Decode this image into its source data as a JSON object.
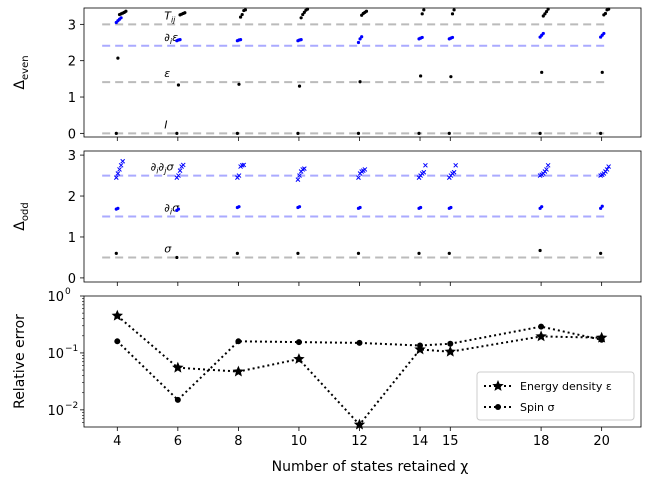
{
  "chart_data": [
    {
      "type": "scatter",
      "panel": "even",
      "ylabel": "Δ",
      "ylabel_sub": "even",
      "ylim": [
        -0.1,
        3.45
      ],
      "yticks": [
        "0",
        "1",
        "2",
        "3"
      ],
      "ytick_values": [
        0,
        1,
        2,
        3
      ],
      "reference_lines": [
        {
          "label": "T",
          "label_sub": "ij",
          "value": 3.0,
          "color": "#bbbbbb"
        },
        {
          "label": "∂",
          "label_sub": "i",
          "label_tail": "ε",
          "value": 2.41,
          "color": "#aaaaff"
        },
        {
          "label": "ε",
          "value": 1.41,
          "color": "#bbbbbb"
        },
        {
          "label": "I",
          "value": 0.0,
          "color": "#bbbbbb"
        }
      ],
      "series": [
        {
          "color": "#000000",
          "points": [
            [
              4,
              0
            ],
            [
              4,
              2.07
            ],
            [
              4,
              3.27
            ],
            [
              4,
              3.29
            ],
            [
              4,
              3.31
            ],
            [
              4,
              3.33
            ],
            [
              4,
              3.36
            ],
            [
              6,
              0
            ],
            [
              6,
              1.33
            ],
            [
              6,
              3.26
            ],
            [
              6,
              3.28
            ],
            [
              6,
              3.3
            ],
            [
              6,
              3.32
            ],
            [
              8,
              0
            ],
            [
              8,
              1.35
            ],
            [
              8,
              3.2
            ],
            [
              8,
              3.27
            ],
            [
              8,
              3.38
            ],
            [
              8,
              3.4
            ],
            [
              10,
              0
            ],
            [
              10,
              1.3
            ],
            [
              10,
              3.18
            ],
            [
              10,
              3.27
            ],
            [
              10,
              3.33
            ],
            [
              10,
              3.39
            ],
            [
              10,
              3.42
            ],
            [
              12,
              0
            ],
            [
              12,
              1.42
            ],
            [
              12,
              3.25
            ],
            [
              12,
              3.3
            ],
            [
              12,
              3.33
            ],
            [
              12,
              3.36
            ],
            [
              14,
              0
            ],
            [
              14,
              1.58
            ],
            [
              14,
              3.29
            ],
            [
              14,
              3.4
            ],
            [
              15,
              0
            ],
            [
              15,
              1.56
            ],
            [
              15,
              3.29
            ],
            [
              15,
              3.4
            ],
            [
              18,
              0
            ],
            [
              18,
              1.68
            ],
            [
              18,
              3.23
            ],
            [
              18,
              3.29
            ],
            [
              18,
              3.35
            ],
            [
              18,
              3.42
            ],
            [
              20,
              0
            ],
            [
              20,
              1.68
            ],
            [
              20,
              3.26
            ],
            [
              20,
              3.3
            ],
            [
              20,
              3.4
            ],
            [
              20,
              3.42
            ]
          ]
        },
        {
          "color": "#0000ff",
          "points": [
            [
              4,
              3.05
            ],
            [
              4,
              3.1
            ],
            [
              4,
              3.14
            ],
            [
              4,
              3.18
            ],
            [
              6,
              2.55
            ],
            [
              6,
              2.57
            ],
            [
              6,
              2.58
            ],
            [
              8,
              2.55
            ],
            [
              8,
              2.57
            ],
            [
              8,
              2.58
            ],
            [
              10,
              2.55
            ],
            [
              10,
              2.57
            ],
            [
              10,
              2.58
            ],
            [
              12,
              2.5
            ],
            [
              12,
              2.6
            ],
            [
              12,
              2.66
            ],
            [
              14,
              2.6
            ],
            [
              14,
              2.62
            ],
            [
              14,
              2.64
            ],
            [
              15,
              2.6
            ],
            [
              15,
              2.62
            ],
            [
              15,
              2.64
            ],
            [
              18,
              2.65
            ],
            [
              18,
              2.7
            ],
            [
              18,
              2.75
            ],
            [
              20,
              2.65
            ],
            [
              20,
              2.7
            ],
            [
              20,
              2.75
            ]
          ]
        }
      ]
    },
    {
      "type": "scatter",
      "panel": "odd",
      "ylabel": "Δ",
      "ylabel_sub": "odd",
      "ylim": [
        -0.1,
        3.1
      ],
      "yticks": [
        "0",
        "1",
        "2",
        "3"
      ],
      "ytick_values": [
        0,
        1,
        2,
        3
      ],
      "reference_lines": [
        {
          "label": "∂",
          "label_sub": "i",
          "label_tail": "∂",
          "label_sub2": "j",
          "label_tail2": "σ",
          "value": 2.5,
          "color": "#aaaaff"
        },
        {
          "label": "∂",
          "label_sub": "i",
          "label_tail": "σ",
          "value": 1.5,
          "color": "#aaaaff"
        },
        {
          "label": "σ",
          "value": 0.5,
          "color": "#bbbbbb"
        }
      ],
      "series": [
        {
          "color": "#000000",
          "points": [
            [
              4,
              0.6
            ],
            [
              6,
              0.5
            ],
            [
              8,
              0.6
            ],
            [
              10,
              0.6
            ],
            [
              12,
              0.6
            ],
            [
              14,
              0.6
            ],
            [
              15,
              0.6
            ],
            [
              18,
              0.67
            ],
            [
              20,
              0.6
            ]
          ]
        },
        {
          "color": "#0000ff",
          "marker": "x",
          "points": [
            [
              4,
              2.45
            ],
            [
              4,
              2.55
            ],
            [
              4,
              2.65
            ],
            [
              4,
              2.75
            ],
            [
              4,
              2.85
            ],
            [
              6,
              2.45
            ],
            [
              6,
              2.5
            ],
            [
              6,
              2.62
            ],
            [
              6,
              2.72
            ],
            [
              6,
              2.76
            ],
            [
              8,
              2.45
            ],
            [
              8,
              2.5
            ],
            [
              8,
              2.72
            ],
            [
              8,
              2.75
            ],
            [
              8,
              2.76
            ],
            [
              10,
              2.4
            ],
            [
              10,
              2.5
            ],
            [
              10,
              2.6
            ],
            [
              10,
              2.65
            ],
            [
              10,
              2.67
            ],
            [
              12,
              2.45
            ],
            [
              12,
              2.55
            ],
            [
              12,
              2.6
            ],
            [
              12,
              2.62
            ],
            [
              12,
              2.65
            ],
            [
              14,
              2.45
            ],
            [
              14,
              2.5
            ],
            [
              14,
              2.55
            ],
            [
              14,
              2.58
            ],
            [
              14,
              2.75
            ],
            [
              15,
              2.45
            ],
            [
              15,
              2.5
            ],
            [
              15,
              2.55
            ],
            [
              15,
              2.58
            ],
            [
              15,
              2.75
            ],
            [
              18,
              2.5
            ],
            [
              18,
              2.52
            ],
            [
              18,
              2.55
            ],
            [
              18,
              2.6
            ],
            [
              18,
              2.65
            ],
            [
              18,
              2.75
            ],
            [
              20,
              2.5
            ],
            [
              20,
              2.52
            ],
            [
              20,
              2.55
            ],
            [
              20,
              2.6
            ],
            [
              20,
              2.65
            ],
            [
              20,
              2.72
            ]
          ]
        },
        {
          "color": "#0000ff",
          "points": [
            [
              4,
              1.68
            ],
            [
              4,
              1.7
            ],
            [
              6,
              1.65
            ],
            [
              6,
              1.68
            ],
            [
              8,
              1.72
            ],
            [
              8,
              1.74
            ],
            [
              10,
              1.72
            ],
            [
              10,
              1.74
            ],
            [
              12,
              1.7
            ],
            [
              12,
              1.72
            ],
            [
              14,
              1.7
            ],
            [
              14,
              1.72
            ],
            [
              15,
              1.7
            ],
            [
              15,
              1.72
            ],
            [
              18,
              1.7
            ],
            [
              18,
              1.74
            ],
            [
              20,
              1.7
            ],
            [
              20,
              1.75
            ]
          ]
        }
      ]
    },
    {
      "type": "line",
      "panel": "error",
      "ylabel": "Relative error",
      "xlabel": "Number of states retained χ",
      "yscale": "log",
      "ylim": [
        0.005,
        1.0
      ],
      "yticks": [
        "10",
        "10",
        "10"
      ],
      "ytick_exponents": [
        "−2",
        "−1",
        "0"
      ],
      "ytick_values": [
        0.01,
        0.1,
        1.0
      ],
      "x": [
        4,
        6,
        8,
        10,
        12,
        14,
        15,
        18,
        20
      ],
      "xlim": [
        2.9,
        21.3
      ],
      "xticks": [
        "4",
        "6",
        "8",
        "10",
        "12",
        "14",
        "15",
        "18",
        "20"
      ],
      "legend_position": "lower-right",
      "series": [
        {
          "name": "Energy density ε",
          "marker": "star",
          "values": [
            0.45,
            0.055,
            0.047,
            0.078,
            0.0055,
            0.115,
            0.105,
            0.195,
            0.185
          ]
        },
        {
          "name": "Spin σ",
          "marker": "circle",
          "values": [
            0.16,
            0.015,
            0.16,
            0.155,
            0.15,
            0.135,
            0.145,
            0.29,
            0.17
          ]
        }
      ]
    }
  ]
}
